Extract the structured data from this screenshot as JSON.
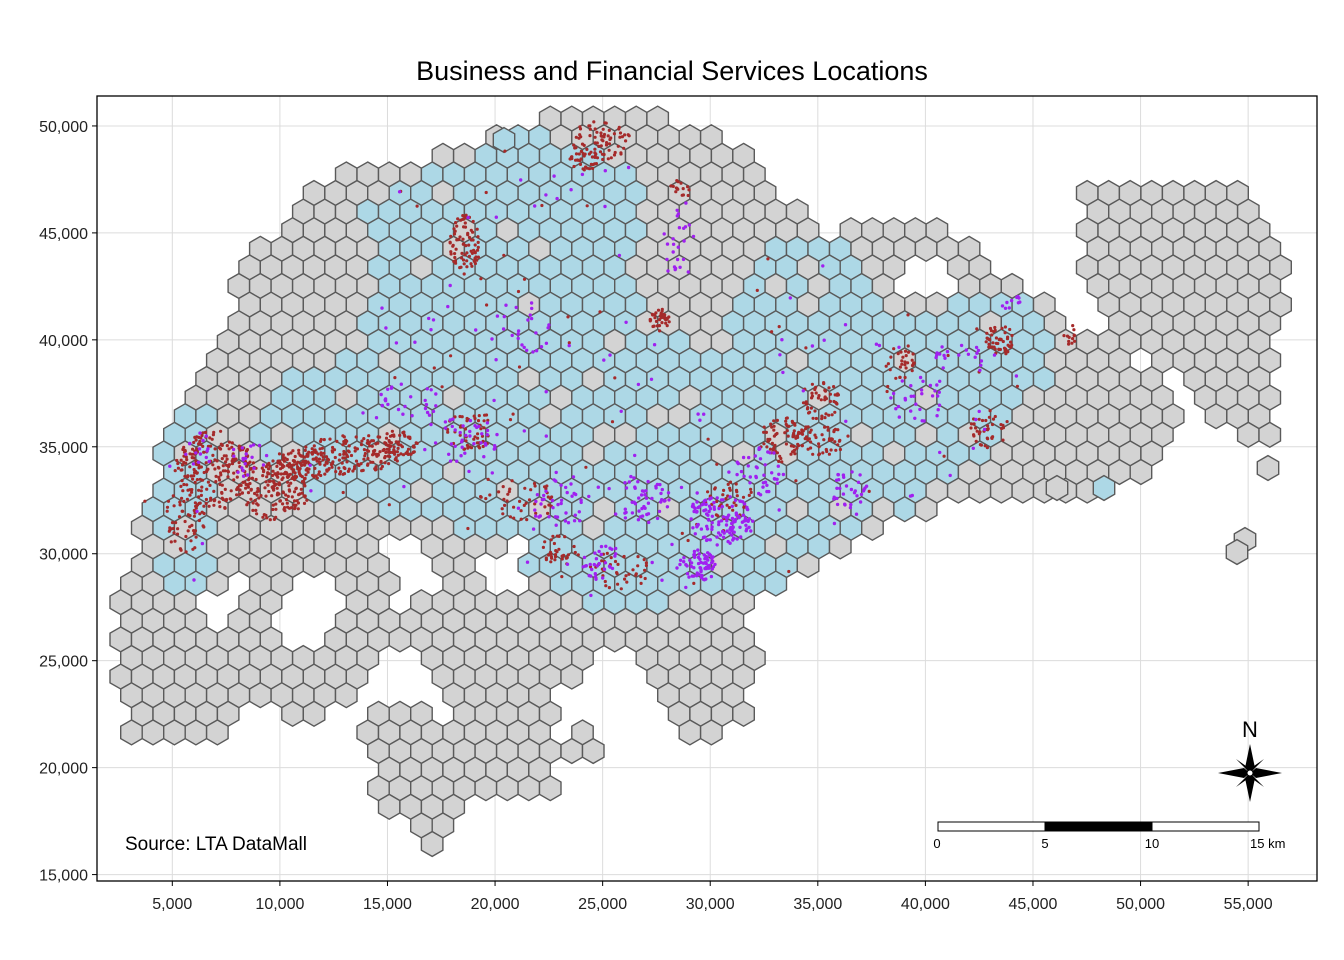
{
  "title": "Business and Financial Services Locations",
  "source_note": "Source: LTA DataMall",
  "north_label": "N",
  "scale_bar": {
    "ticks": [
      "0",
      "5",
      "10",
      "15 km"
    ]
  },
  "axes": {
    "x": {
      "range": [
        1500,
        58200
      ],
      "ticks": [
        5000,
        10000,
        15000,
        20000,
        25000,
        30000,
        35000,
        40000,
        45000,
        50000,
        55000
      ],
      "tick_labels": [
        "5,000",
        "10,000",
        "15,000",
        "20,000",
        "25,000",
        "30,000",
        "35,000",
        "40,000",
        "45,000",
        "50,000",
        "55,000"
      ]
    },
    "y": {
      "range": [
        14700,
        51400
      ],
      "ticks": [
        15000,
        20000,
        25000,
        30000,
        35000,
        40000,
        45000,
        50000
      ],
      "tick_labels": [
        "15,000",
        "20,000",
        "25,000",
        "30,000",
        "35,000",
        "40,000",
        "45,000",
        "50,000"
      ]
    },
    "grid": true
  },
  "colors": {
    "hex_empty": "#d3d3d3",
    "hex_with_services": "#add8e6",
    "hex_stroke": "#5a5a5a",
    "points_business": "#a52a2a",
    "points_financial": "#a020f0",
    "grid": "#dcdcdc"
  },
  "chart_data": {
    "type": "map",
    "title": "Business and Financial Services Locations",
    "xlim": [
      1500,
      58200
    ],
    "ylim": [
      14700,
      51400
    ],
    "layers": [
      "hexagon grid (grey = no services, light blue = with services)",
      "business locations (brown points)",
      "financial service locations (purple points)"
    ]
  }
}
